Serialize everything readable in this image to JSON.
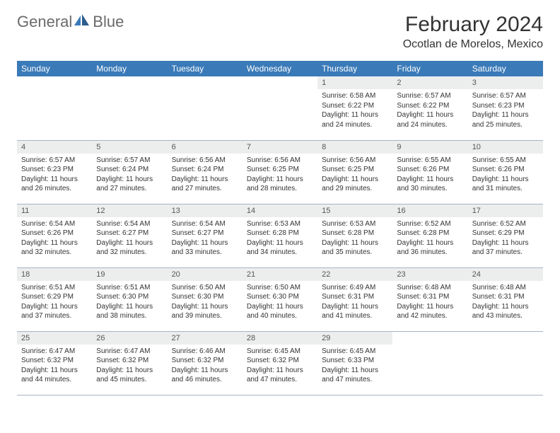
{
  "brand": {
    "name_gray": "General",
    "name_blue": "Blue"
  },
  "title": "February 2024",
  "location": "Ocotlan de Morelos, Mexico",
  "colors": {
    "header_bg": "#3a7ab8",
    "header_text": "#ffffff",
    "daynum_bg": "#eceeee",
    "border": "#a9b4bf",
    "logo_gray": "#6a6a6a",
    "logo_blue": "#3a7ab8"
  },
  "fonts": {
    "title_pt": 30,
    "location_pt": 16,
    "th_pt": 12,
    "daynum_pt": 11,
    "body_pt": 10
  },
  "weekdays": [
    "Sunday",
    "Monday",
    "Tuesday",
    "Wednesday",
    "Thursday",
    "Friday",
    "Saturday"
  ],
  "grid": {
    "rows": 5,
    "cols": 7,
    "leading_blanks": 4,
    "days_in_month": 29
  },
  "days": {
    "1": {
      "sunrise": "6:58 AM",
      "sunset": "6:22 PM",
      "daylight": "11 hours and 24 minutes."
    },
    "2": {
      "sunrise": "6:57 AM",
      "sunset": "6:22 PM",
      "daylight": "11 hours and 24 minutes."
    },
    "3": {
      "sunrise": "6:57 AM",
      "sunset": "6:23 PM",
      "daylight": "11 hours and 25 minutes."
    },
    "4": {
      "sunrise": "6:57 AM",
      "sunset": "6:23 PM",
      "daylight": "11 hours and 26 minutes."
    },
    "5": {
      "sunrise": "6:57 AM",
      "sunset": "6:24 PM",
      "daylight": "11 hours and 27 minutes."
    },
    "6": {
      "sunrise": "6:56 AM",
      "sunset": "6:24 PM",
      "daylight": "11 hours and 27 minutes."
    },
    "7": {
      "sunrise": "6:56 AM",
      "sunset": "6:25 PM",
      "daylight": "11 hours and 28 minutes."
    },
    "8": {
      "sunrise": "6:56 AM",
      "sunset": "6:25 PM",
      "daylight": "11 hours and 29 minutes."
    },
    "9": {
      "sunrise": "6:55 AM",
      "sunset": "6:26 PM",
      "daylight": "11 hours and 30 minutes."
    },
    "10": {
      "sunrise": "6:55 AM",
      "sunset": "6:26 PM",
      "daylight": "11 hours and 31 minutes."
    },
    "11": {
      "sunrise": "6:54 AM",
      "sunset": "6:26 PM",
      "daylight": "11 hours and 32 minutes."
    },
    "12": {
      "sunrise": "6:54 AM",
      "sunset": "6:27 PM",
      "daylight": "11 hours and 32 minutes."
    },
    "13": {
      "sunrise": "6:54 AM",
      "sunset": "6:27 PM",
      "daylight": "11 hours and 33 minutes."
    },
    "14": {
      "sunrise": "6:53 AM",
      "sunset": "6:28 PM",
      "daylight": "11 hours and 34 minutes."
    },
    "15": {
      "sunrise": "6:53 AM",
      "sunset": "6:28 PM",
      "daylight": "11 hours and 35 minutes."
    },
    "16": {
      "sunrise": "6:52 AM",
      "sunset": "6:28 PM",
      "daylight": "11 hours and 36 minutes."
    },
    "17": {
      "sunrise": "6:52 AM",
      "sunset": "6:29 PM",
      "daylight": "11 hours and 37 minutes."
    },
    "18": {
      "sunrise": "6:51 AM",
      "sunset": "6:29 PM",
      "daylight": "11 hours and 37 minutes."
    },
    "19": {
      "sunrise": "6:51 AM",
      "sunset": "6:30 PM",
      "daylight": "11 hours and 38 minutes."
    },
    "20": {
      "sunrise": "6:50 AM",
      "sunset": "6:30 PM",
      "daylight": "11 hours and 39 minutes."
    },
    "21": {
      "sunrise": "6:50 AM",
      "sunset": "6:30 PM",
      "daylight": "11 hours and 40 minutes."
    },
    "22": {
      "sunrise": "6:49 AM",
      "sunset": "6:31 PM",
      "daylight": "11 hours and 41 minutes."
    },
    "23": {
      "sunrise": "6:48 AM",
      "sunset": "6:31 PM",
      "daylight": "11 hours and 42 minutes."
    },
    "24": {
      "sunrise": "6:48 AM",
      "sunset": "6:31 PM",
      "daylight": "11 hours and 43 minutes."
    },
    "25": {
      "sunrise": "6:47 AM",
      "sunset": "6:32 PM",
      "daylight": "11 hours and 44 minutes."
    },
    "26": {
      "sunrise": "6:47 AM",
      "sunset": "6:32 PM",
      "daylight": "11 hours and 45 minutes."
    },
    "27": {
      "sunrise": "6:46 AM",
      "sunset": "6:32 PM",
      "daylight": "11 hours and 46 minutes."
    },
    "28": {
      "sunrise": "6:45 AM",
      "sunset": "6:32 PM",
      "daylight": "11 hours and 47 minutes."
    },
    "29": {
      "sunrise": "6:45 AM",
      "sunset": "6:33 PM",
      "daylight": "11 hours and 47 minutes."
    }
  },
  "labels": {
    "sunrise": "Sunrise:",
    "sunset": "Sunset:",
    "daylight": "Daylight:"
  }
}
